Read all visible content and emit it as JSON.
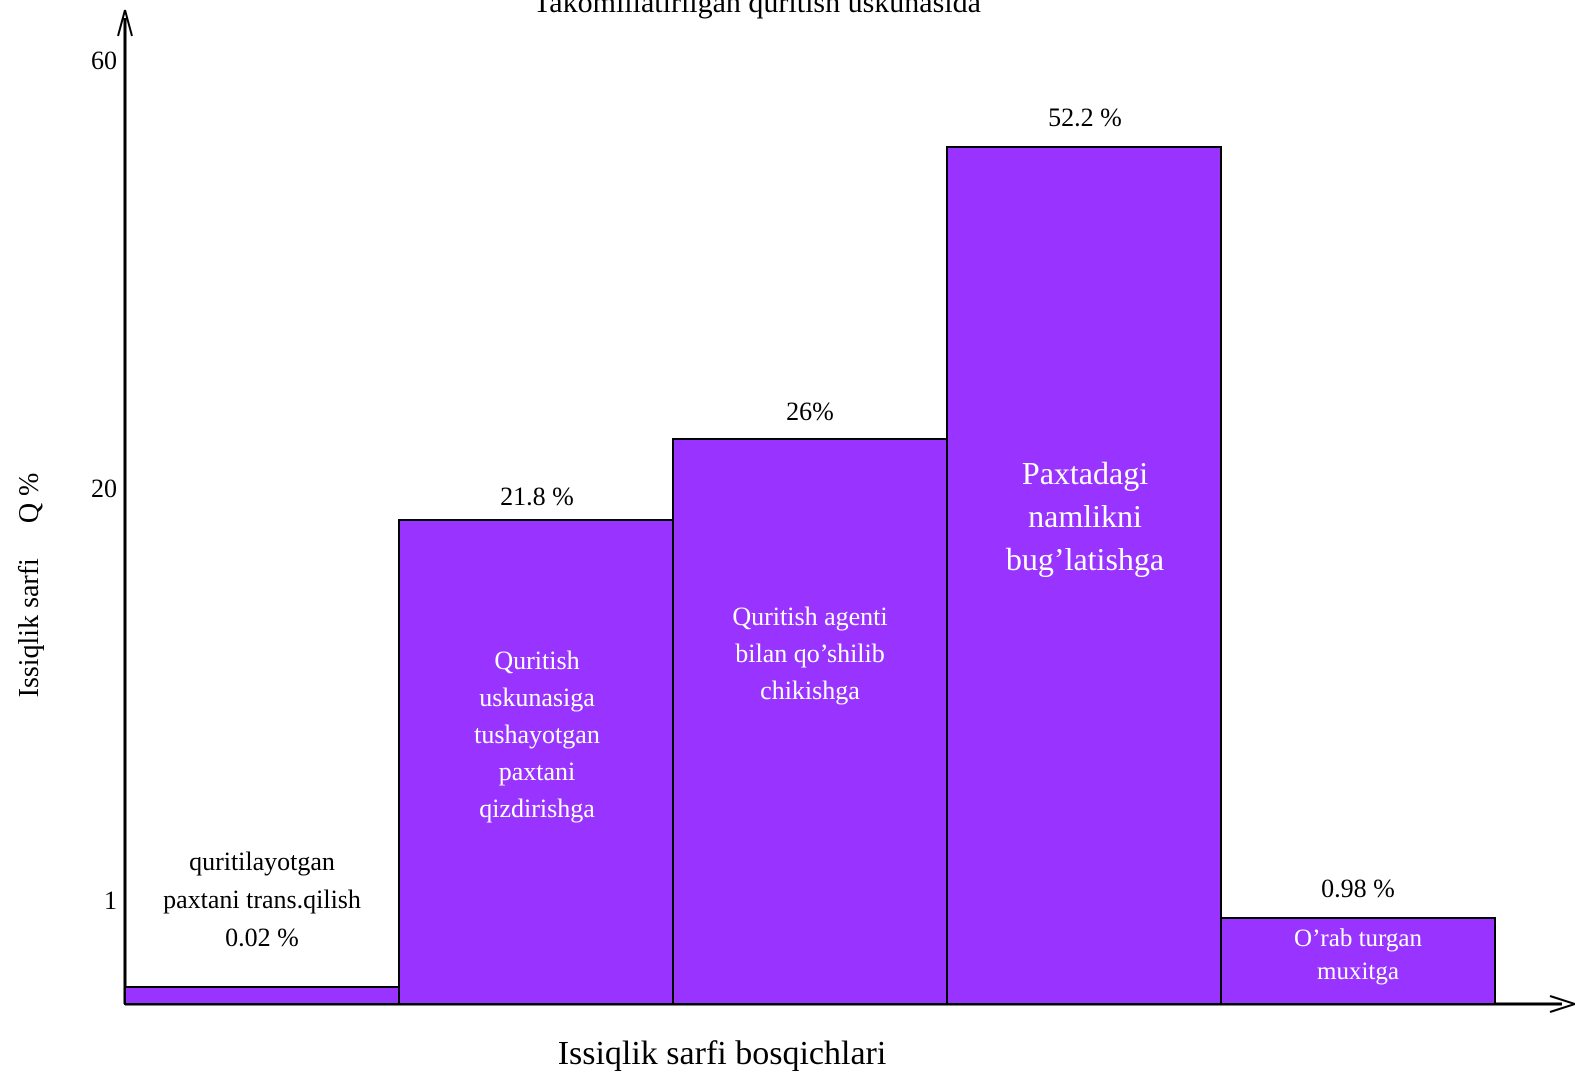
{
  "chart_data": {
    "type": "bar",
    "title": "Takomillatirilgan quritish uskunasida",
    "xlabel": "Issiqlik sarfi bosqichlari",
    "ylabel": "Issiqlik sarfi     Q %",
    "y_ticks": [
      "60",
      "20",
      "1"
    ],
    "bar_color": "#9933ff",
    "bars": [
      {
        "label": [
          "quritilayotgan",
          "paxtani trans.qilish",
          "0.02 %"
        ],
        "value": 0.02,
        "label_color": "#000000"
      },
      {
        "label": [
          "Quritish",
          "uskunasiga",
          "tushayotgan",
          "paxtani",
          "qizdirishga"
        ],
        "value_label": "21.8 %",
        "value": 21.8,
        "label_color": "#ffffff"
      },
      {
        "label": [
          "Quritish agenti",
          "bilan qo’shilib",
          "chikishga"
        ],
        "value_label": "26%",
        "value": 26,
        "label_color": "#ffffff"
      },
      {
        "label": [
          "Paxtadagi",
          "namlikni",
          "bug’latishga"
        ],
        "value_label": "52.2 %",
        "value": 52.2,
        "label_color": "#ffffff"
      },
      {
        "label": [
          "O’rab turgan",
          "muxitga"
        ],
        "value_label": "0.98 %",
        "value": 0.98,
        "label_color": "#ffffff"
      }
    ]
  }
}
